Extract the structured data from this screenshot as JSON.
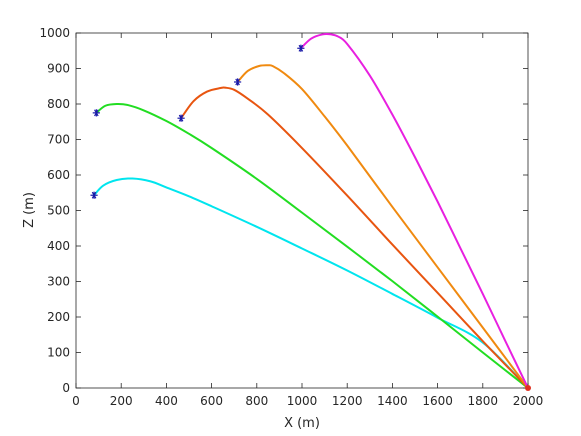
{
  "chart_data": {
    "type": "line",
    "title": "",
    "xlabel": "X (m)",
    "ylabel": "Z (m)",
    "xlim": [
      0,
      2000
    ],
    "ylim": [
      0,
      1000
    ],
    "xticks": [
      0,
      200,
      400,
      600,
      800,
      1000,
      1200,
      1400,
      1600,
      1800,
      2000
    ],
    "yticks": [
      0,
      100,
      200,
      300,
      400,
      500,
      600,
      700,
      800,
      900,
      1000
    ],
    "grid": false,
    "legend": "none",
    "target": {
      "x": 2000,
      "y": 0,
      "color": "#e03020"
    },
    "marker_color": "#1a1aa8",
    "series": [
      {
        "color": "#00e5ee",
        "x": [
          80,
          120,
          180,
          250,
          330,
          400,
          500,
          600,
          800,
          1000,
          1200,
          1400,
          1600,
          1800,
          2000
        ],
        "y": [
          543,
          570,
          586,
          590,
          582,
          565,
          540,
          512,
          454,
          393,
          331,
          265,
          198,
          128,
          0
        ]
      },
      {
        "color": "#22dd22",
        "x": [
          90,
          130,
          180,
          230,
          300,
          400,
          500,
          600,
          800,
          1000,
          1200,
          1400,
          1600,
          1800,
          2000
        ],
        "y": [
          775,
          795,
          800,
          797,
          782,
          752,
          716,
          676,
          589,
          494,
          398,
          301,
          201,
          100,
          0
        ]
      },
      {
        "color": "#e85510",
        "x": [
          465,
          520,
          580,
          640,
          660,
          700,
          760,
          850,
          1000,
          1200,
          1400,
          1600,
          1800,
          2000
        ],
        "y": [
          760,
          808,
          835,
          845,
          846,
          840,
          815,
          770,
          676,
          542,
          404,
          268,
          132,
          0
        ]
      },
      {
        "color": "#f08a10",
        "x": [
          715,
          760,
          810,
          850,
          870,
          920,
          1000,
          1100,
          1200,
          1400,
          1600,
          1800,
          2000
        ],
        "y": [
          862,
          893,
          907,
          909,
          907,
          887,
          842,
          765,
          683,
          510,
          340,
          170,
          0
        ]
      },
      {
        "color": "#e820e0",
        "x": [
          995,
          1040,
          1090,
          1130,
          1160,
          1200,
          1300,
          1400,
          1500,
          1600,
          1700,
          1800,
          1900,
          2000
        ],
        "y": [
          957,
          984,
          996,
          996,
          990,
          969,
          880,
          770,
          650,
          525,
          395,
          265,
          132,
          0
        ]
      }
    ]
  }
}
